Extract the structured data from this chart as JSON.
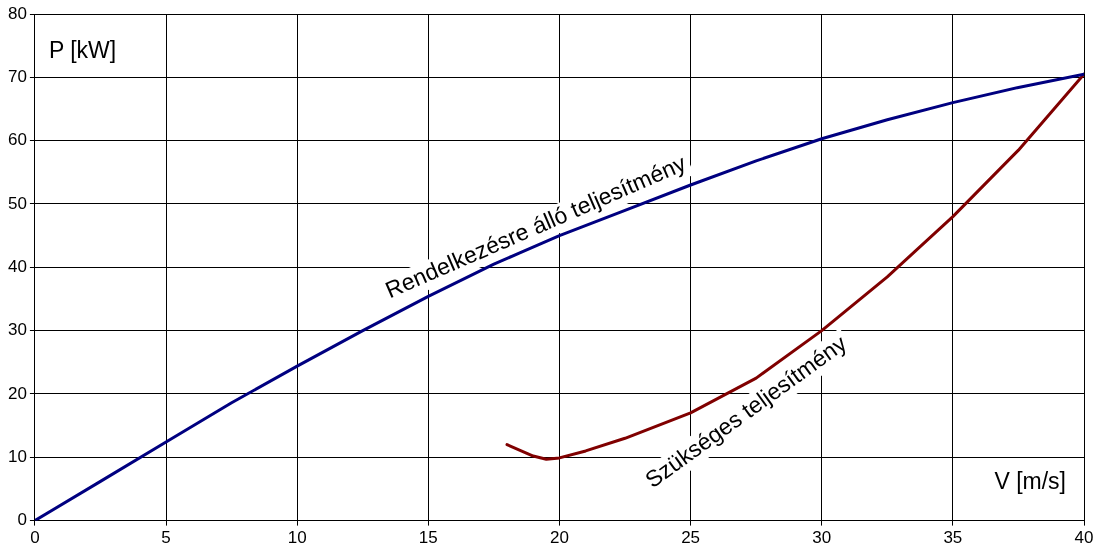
{
  "chart_data": {
    "type": "line",
    "xlabel": "V [m/s]",
    "ylabel": "P [kW]",
    "xlim": [
      0,
      40
    ],
    "xticks": [
      0,
      5,
      10,
      15,
      20,
      25,
      30,
      35,
      40
    ],
    "ylim": [
      0,
      80
    ],
    "yticks": [
      0,
      10,
      20,
      30,
      40,
      50,
      60,
      70,
      80
    ],
    "grid": true,
    "legend": false,
    "marker": "none",
    "line_style": "solid",
    "series": [
      {
        "name": "Rendelkezésre álló teljesítmény",
        "color": "#000080",
        "x": [
          0,
          2.5,
          5,
          7.5,
          10,
          12.5,
          15,
          17.5,
          20,
          22.5,
          25,
          27.5,
          30,
          32.5,
          35,
          37.5,
          40
        ],
        "values": [
          0,
          6.2,
          12.4,
          18.6,
          24.4,
          30,
          35.4,
          40.5,
          45,
          49,
          53,
          56.8,
          60.3,
          63.3,
          66,
          68.4,
          70.5
        ]
      },
      {
        "name": "Szükséges teljesítmény",
        "color": "#800000",
        "x": [
          18,
          19,
          19.5,
          20,
          21,
          22.5,
          25,
          27.5,
          30,
          32.5,
          35,
          37.5,
          40
        ],
        "values": [
          12,
          10.2,
          9.7,
          9.9,
          11,
          13,
          17,
          22.5,
          30,
          38.5,
          48,
          58.5,
          70.5
        ]
      }
    ]
  }
}
